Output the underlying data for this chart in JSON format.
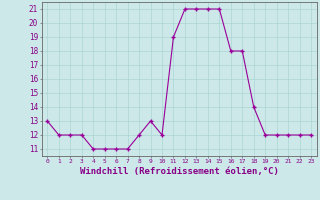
{
  "x": [
    0,
    1,
    2,
    3,
    4,
    5,
    6,
    7,
    8,
    9,
    10,
    11,
    12,
    13,
    14,
    15,
    16,
    17,
    18,
    19,
    20,
    21,
    22,
    23
  ],
  "y": [
    13,
    12,
    12,
    12,
    11,
    11,
    11,
    11,
    12,
    13,
    12,
    19,
    21,
    21,
    21,
    21,
    18,
    18,
    14,
    12,
    12,
    12,
    12,
    12
  ],
  "line_color": "#990099",
  "marker": "+",
  "marker_size": 3,
  "background_color": "#cce8e8",
  "grid_color": "#aad4d4",
  "xlabel": "Windchill (Refroidissement éolien,°C)",
  "ytick_labels": [
    "11",
    "12",
    "13",
    "14",
    "15",
    "16",
    "17",
    "18",
    "19",
    "20",
    "21"
  ],
  "ytick_values": [
    11,
    12,
    13,
    14,
    15,
    16,
    17,
    18,
    19,
    20,
    21
  ],
  "xtick_labels": [
    "0",
    "1",
    "2",
    "3",
    "4",
    "5",
    "6",
    "7",
    "8",
    "9",
    "10",
    "11",
    "12",
    "13",
    "14",
    "15",
    "16",
    "17",
    "18",
    "19",
    "20",
    "21",
    "22",
    "23"
  ],
  "xlim": [
    -0.5,
    23.5
  ],
  "ylim": [
    10.5,
    21.5
  ],
  "line_width": 0.8
}
